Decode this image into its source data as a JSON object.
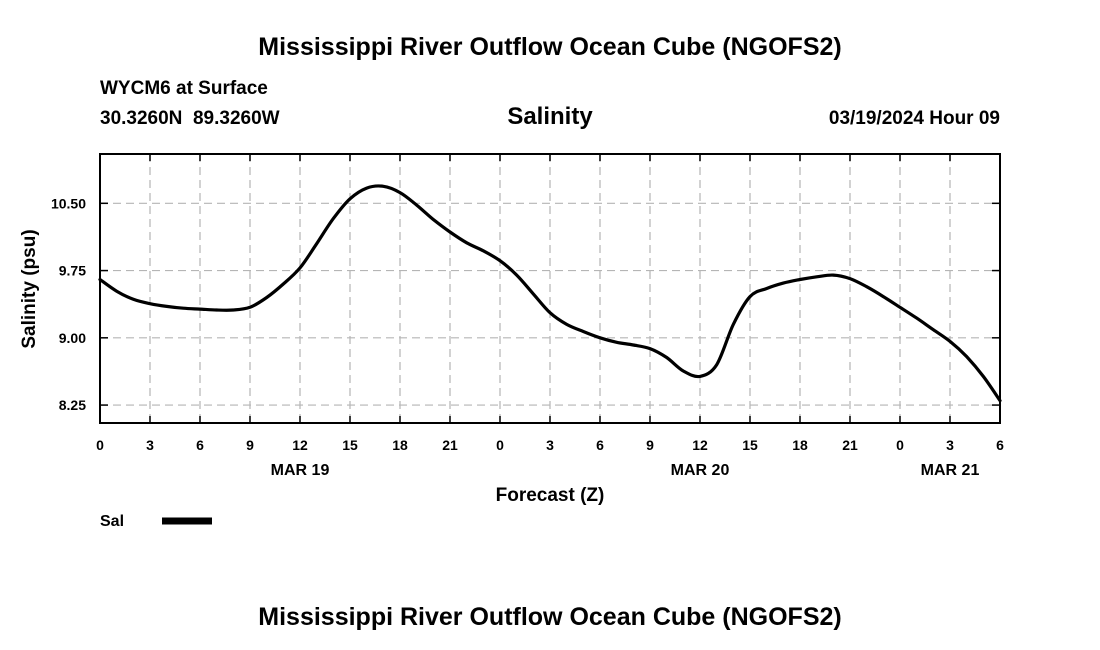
{
  "chart_data": {
    "type": "line",
    "title": "Mississippi River Outflow Ocean Cube (NGOFS2)",
    "footer_title": "Mississippi River Outflow Ocean Cube (NGOFS2)",
    "subtitle": "Salinity",
    "station": "WYCM6 at Surface",
    "coordinates": "30.3260N  89.3260W",
    "timestamp": "03/19/2024 Hour 09",
    "xlabel": "Forecast (Z)",
    "ylabel": "Salinity (psu)",
    "xlim": [
      0,
      54
    ],
    "ylim": [
      8.05,
      11.05
    ],
    "grid": true,
    "y_ticks": [
      8.25,
      9.0,
      9.75,
      10.5
    ],
    "y_tick_labels": [
      "8.25",
      "9.00",
      "9.75",
      "10.50"
    ],
    "x_ticks": [
      0,
      3,
      6,
      9,
      12,
      15,
      18,
      21,
      24,
      27,
      30,
      33,
      36,
      39,
      42,
      45,
      48,
      51,
      54
    ],
    "x_tick_labels": [
      "0",
      "3",
      "6",
      "9",
      "12",
      "15",
      "18",
      "21",
      "0",
      "3",
      "6",
      "9",
      "12",
      "15",
      "18",
      "21",
      "0",
      "3",
      "6"
    ],
    "day_labels": [
      {
        "x": 12,
        "label": "MAR 19"
      },
      {
        "x": 36,
        "label": "MAR 20"
      },
      {
        "x": 51,
        "label": "MAR 21"
      }
    ],
    "legend": {
      "label": "Sal",
      "position": "bottom-left"
    },
    "series": [
      {
        "name": "Sal",
        "color": "#000000",
        "x": [
          0,
          1,
          2,
          3,
          4,
          5,
          6,
          7,
          8,
          9,
          10,
          11,
          12,
          13,
          14,
          15,
          16,
          17,
          18,
          19,
          20,
          21,
          22,
          23,
          24,
          25,
          26,
          27,
          28,
          29,
          30,
          31,
          32,
          33,
          34,
          35,
          36,
          37,
          38,
          39,
          40,
          41,
          42,
          43,
          44,
          45,
          46,
          47,
          48,
          49,
          50,
          51,
          52,
          53,
          54
        ],
        "values": [
          9.65,
          9.52,
          9.43,
          9.38,
          9.35,
          9.33,
          9.32,
          9.31,
          9.31,
          9.34,
          9.45,
          9.6,
          9.78,
          10.05,
          10.33,
          10.55,
          10.67,
          10.69,
          10.62,
          10.48,
          10.32,
          10.18,
          10.06,
          9.97,
          9.86,
          9.7,
          9.49,
          9.28,
          9.15,
          9.07,
          9.0,
          8.95,
          8.92,
          8.88,
          8.78,
          8.63,
          8.57,
          8.7,
          9.15,
          9.46,
          9.55,
          9.61,
          9.65,
          9.68,
          9.7,
          9.66,
          9.57,
          9.46,
          9.34,
          9.22,
          9.09,
          8.96,
          8.79,
          8.57,
          8.3
        ]
      }
    ]
  }
}
